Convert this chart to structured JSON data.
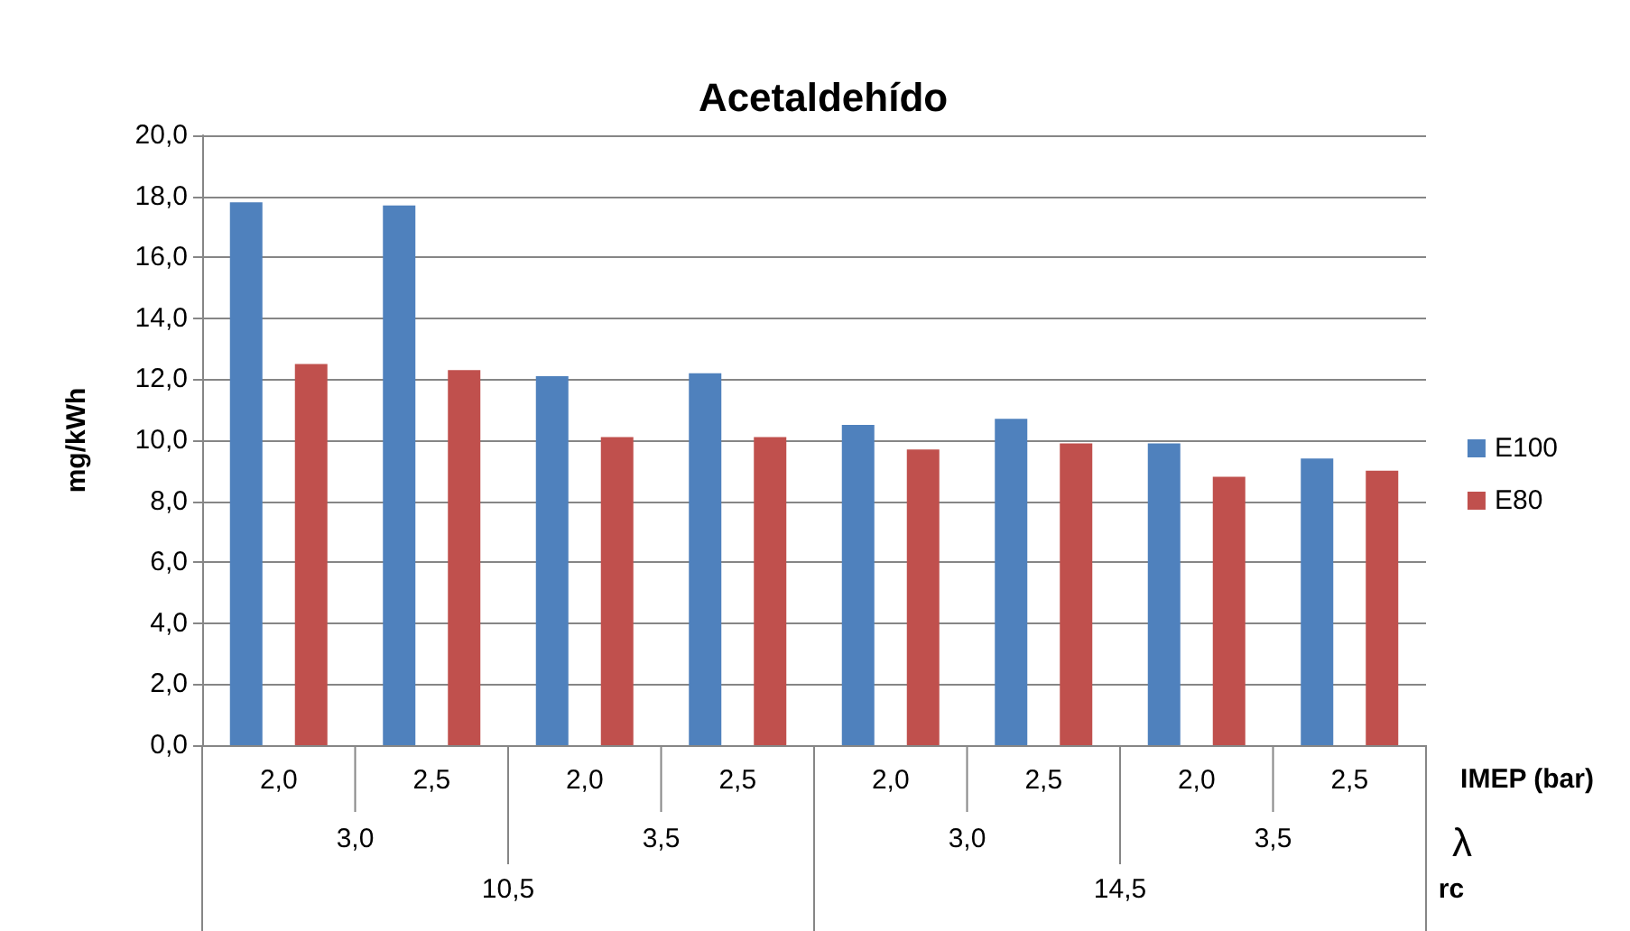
{
  "chart_data": {
    "type": "bar",
    "title": "Acetaldehído",
    "ylabel": "mg/kWh",
    "xlabel": "IMEP (bar)",
    "categories": [
      "2,0",
      "2,5",
      "2,0",
      "2,5",
      "2,0",
      "2,5",
      "2,0",
      "2,5"
    ],
    "annotations": [
      "3,0",
      "3,5",
      "3,0",
      "3,5",
      "λ",
      "10,5",
      "14,5",
      "rc"
    ],
    "series": [
      {
        "name": "E100",
        "color": "#4f81bd",
        "values": [
          17.8,
          17.7,
          12.1,
          12.2,
          10.5,
          10.7,
          9.9,
          9.4
        ]
      },
      {
        "name": "E80",
        "color": "#c0504d",
        "values": [
          12.5,
          12.3,
          10.1,
          10.1,
          9.7,
          9.9,
          8.8,
          9.0
        ]
      }
    ],
    "ylim": [
      0,
      20
    ],
    "yticks": [
      {
        "value": 0,
        "label": "0,0"
      },
      {
        "value": 2,
        "label": "2,0"
      },
      {
        "value": 4,
        "label": "4,0"
      },
      {
        "value": 6,
        "label": "6,0"
      },
      {
        "value": 8,
        "label": "8,0"
      },
      {
        "value": 10,
        "label": "10,0"
      },
      {
        "value": 12,
        "label": "12,0"
      },
      {
        "value": 14,
        "label": "14,0"
      },
      {
        "value": 16,
        "label": "16,0"
      },
      {
        "value": 18,
        "label": "18,0"
      },
      {
        "value": 20,
        "label": "20,0"
      }
    ],
    "grid": "y",
    "legend": "right"
  }
}
